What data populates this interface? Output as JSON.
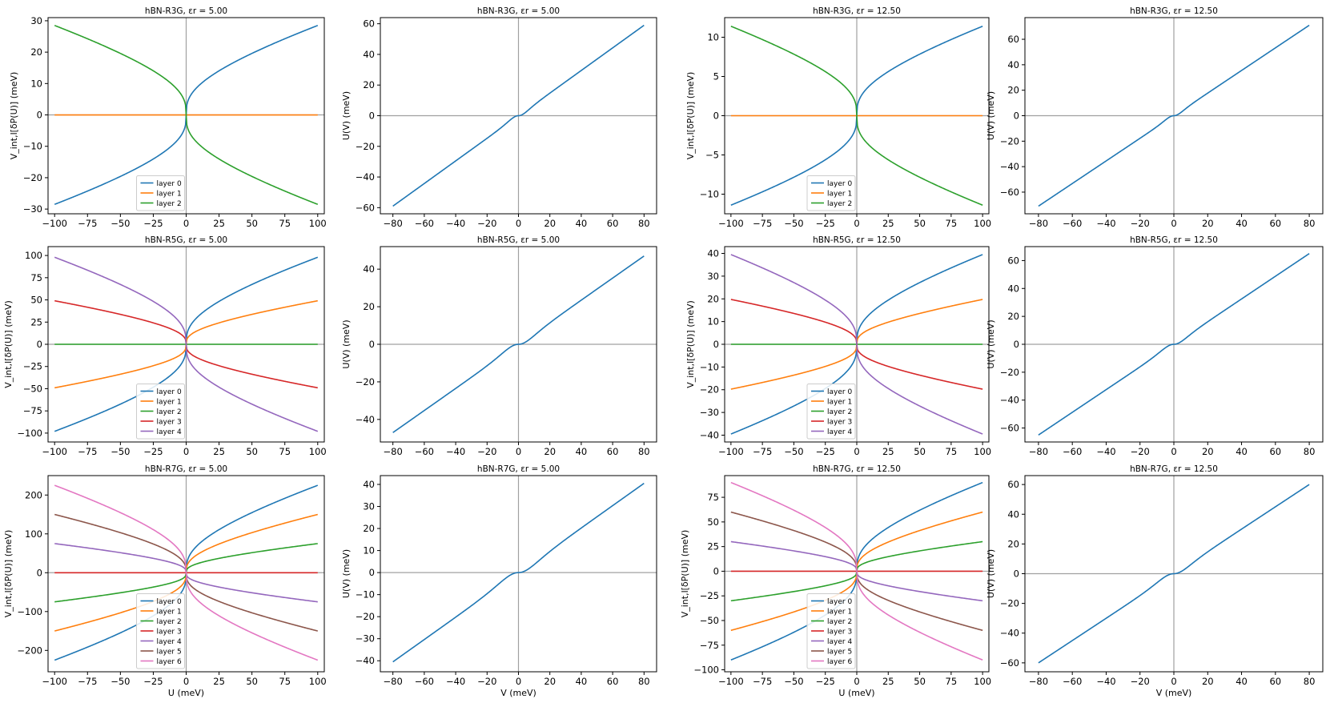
{
  "colors": {
    "layer0": "#1f77b4",
    "layer1": "#ff7f0e",
    "layer2": "#2ca02c",
    "layer3": "#d62728",
    "layer4": "#9467bd",
    "layer5": "#8c564b",
    "layer6": "#e377c2",
    "single": "#1f77b4",
    "zero_line": "#a0a0a0"
  },
  "chart_data": [
    {
      "type": "line",
      "title": "hBN-R3G, εr = 5.00",
      "xlabel": "",
      "ylabel": "V_int,l[δP(U)] (meV)",
      "kind": "layers",
      "layers": 3,
      "amplitude": 28.5,
      "xlim": [
        -105,
        105
      ],
      "ylim": [
        -31.5,
        31
      ],
      "xticks": [
        -100,
        -75,
        -50,
        -25,
        0,
        25,
        50,
        75,
        100
      ],
      "yticks": [
        -30,
        -20,
        -10,
        0,
        10,
        20,
        30
      ],
      "legend": [
        "layer 0",
        "layer 1",
        "layer 2"
      ]
    },
    {
      "type": "line",
      "title": "hBN-R3G, εr = 5.00",
      "xlabel": "",
      "ylabel": "U(V) (meV)",
      "kind": "single",
      "vmax": 59,
      "shape": 0.85,
      "xlim": [
        -88,
        88
      ],
      "ylim": [
        -64,
        64
      ],
      "xticks": [
        -80,
        -60,
        -40,
        -20,
        0,
        20,
        40,
        60,
        80
      ],
      "yticks": [
        -60,
        -40,
        -20,
        0,
        20,
        40,
        60
      ]
    },
    {
      "type": "line",
      "title": "hBN-R3G, εr = 12.50",
      "xlabel": "",
      "ylabel": "V_int,l[δP(U)] (meV)",
      "kind": "layers",
      "layers": 3,
      "amplitude": 11.4,
      "xlim": [
        -105,
        105
      ],
      "ylim": [
        -12.5,
        12.5
      ],
      "xticks": [
        -100,
        -75,
        -50,
        -25,
        0,
        25,
        50,
        75,
        100
      ],
      "yticks": [
        -10,
        -5,
        0,
        5,
        10
      ],
      "legend": [
        "layer 0",
        "layer 1",
        "layer 2"
      ]
    },
    {
      "type": "line",
      "title": "hBN-R3G, εr = 12.50",
      "xlabel": "",
      "ylabel": "U(V) (meV)",
      "kind": "single",
      "vmax": 71,
      "shape": 0.92,
      "xlim": [
        -88,
        88
      ],
      "ylim": [
        -77,
        77
      ],
      "xticks": [
        -80,
        -60,
        -40,
        -20,
        0,
        20,
        40,
        60,
        80
      ],
      "yticks": [
        -60,
        -40,
        -20,
        0,
        20,
        40,
        60
      ]
    },
    {
      "type": "line",
      "title": "hBN-R5G, εr = 5.00",
      "xlabel": "",
      "ylabel": "V_int,l[δP(U)] (meV)",
      "kind": "layers",
      "layers": 5,
      "amplitude": 98,
      "xlim": [
        -105,
        105
      ],
      "ylim": [
        -110,
        110
      ],
      "xticks": [
        -100,
        -75,
        -50,
        -25,
        0,
        25,
        50,
        75,
        100
      ],
      "yticks": [
        -100,
        -75,
        -50,
        -25,
        0,
        25,
        50,
        75,
        100
      ],
      "legend": [
        "layer 0",
        "layer 1",
        "layer 2",
        "layer 3",
        "layer 4"
      ]
    },
    {
      "type": "line",
      "title": "hBN-R5G, εr = 5.00",
      "xlabel": "",
      "ylabel": "U(V) (meV)",
      "kind": "single",
      "vmax": 47,
      "shape": 0.55,
      "xlim": [
        -88,
        88
      ],
      "ylim": [
        -52,
        52
      ],
      "xticks": [
        -80,
        -60,
        -40,
        -20,
        0,
        20,
        40,
        60,
        80
      ],
      "yticks": [
        -40,
        -20,
        0,
        20,
        40
      ]
    },
    {
      "type": "line",
      "title": "hBN-R5G, εr = 12.50",
      "xlabel": "",
      "ylabel": "V_int,l[δP(U)] (meV)",
      "kind": "layers",
      "layers": 5,
      "amplitude": 39.5,
      "xlim": [
        -105,
        105
      ],
      "ylim": [
        -43,
        43
      ],
      "xticks": [
        -100,
        -75,
        -50,
        -25,
        0,
        25,
        50,
        75,
        100
      ],
      "yticks": [
        -40,
        -30,
        -20,
        -10,
        0,
        10,
        20,
        30,
        40
      ],
      "legend": [
        "layer 0",
        "layer 1",
        "layer 2",
        "layer 3",
        "layer 4"
      ]
    },
    {
      "type": "line",
      "title": "hBN-R5G, εr = 12.50",
      "xlabel": "",
      "ylabel": "U(V) (meV)",
      "kind": "single",
      "vmax": 65,
      "shape": 0.75,
      "xlim": [
        -88,
        88
      ],
      "ylim": [
        -70,
        70
      ],
      "xticks": [
        -80,
        -60,
        -40,
        -20,
        0,
        20,
        40,
        60,
        80
      ],
      "yticks": [
        -60,
        -40,
        -20,
        0,
        20,
        40,
        60
      ]
    },
    {
      "type": "line",
      "title": "hBN-R7G, εr = 5.00",
      "xlabel": "U (meV)",
      "ylabel": "V_int,l[δP(U)] (meV)",
      "kind": "layers",
      "layers": 7,
      "amplitude": 225,
      "xlim": [
        -105,
        105
      ],
      "ylim": [
        -255,
        250
      ],
      "xticks": [
        -100,
        -75,
        -50,
        -25,
        0,
        25,
        50,
        75,
        100
      ],
      "yticks": [
        -200,
        -100,
        0,
        100,
        200
      ],
      "legend": [
        "layer 0",
        "layer 1",
        "layer 2",
        "layer 3",
        "layer 4",
        "layer 5",
        "layer 6"
      ]
    },
    {
      "type": "line",
      "title": "hBN-R7G, εr = 5.00",
      "xlabel": "V (meV)",
      "ylabel": "U(V) (meV)",
      "kind": "single",
      "vmax": 40.5,
      "shape": 0.4,
      "xlim": [
        -88,
        88
      ],
      "ylim": [
        -45,
        44
      ],
      "xticks": [
        -80,
        -60,
        -40,
        -20,
        0,
        20,
        40,
        60,
        80
      ],
      "yticks": [
        -40,
        -30,
        -20,
        -10,
        0,
        10,
        20,
        30,
        40
      ]
    },
    {
      "type": "line",
      "title": "hBN-R7G, εr = 12.50",
      "xlabel": "U (meV)",
      "ylabel": "V_int,l[δP(U)] (meV)",
      "kind": "layers",
      "layers": 7,
      "amplitude": 90,
      "xlim": [
        -105,
        105
      ],
      "ylim": [
        -102,
        97
      ],
      "xticks": [
        -100,
        -75,
        -50,
        -25,
        0,
        25,
        50,
        75,
        100
      ],
      "yticks": [
        -100,
        -75,
        -50,
        -25,
        0,
        25,
        50,
        75
      ],
      "legend": [
        "layer 0",
        "layer 1",
        "layer 2",
        "layer 3",
        "layer 4",
        "layer 5",
        "layer 6"
      ]
    },
    {
      "type": "line",
      "title": "hBN-R7G, εr = 12.50",
      "xlabel": "V  (meV)",
      "ylabel": "U(V) (meV)",
      "kind": "single",
      "vmax": 60,
      "shape": 0.6,
      "xlim": [
        -88,
        88
      ],
      "ylim": [
        -66,
        66
      ],
      "xticks": [
        -80,
        -60,
        -40,
        -20,
        0,
        20,
        40,
        60,
        80
      ],
      "yticks": [
        -60,
        -40,
        -20,
        0,
        20,
        40,
        60
      ]
    }
  ]
}
